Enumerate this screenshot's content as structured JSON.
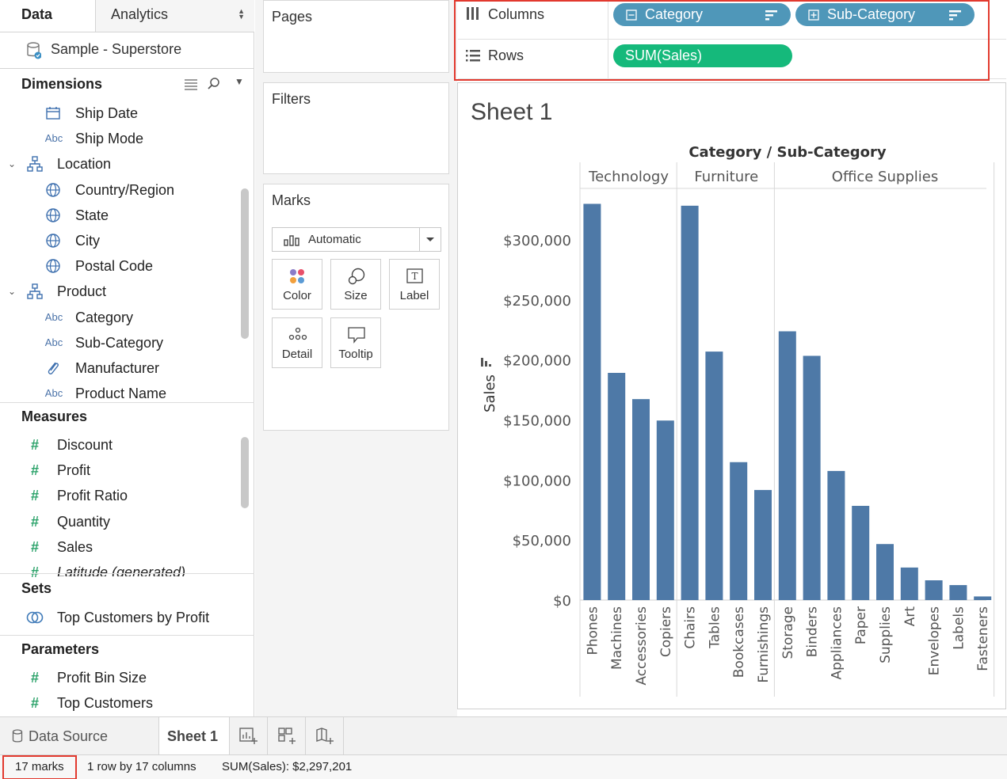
{
  "left_pane": {
    "tab_data": "Data",
    "tab_analytics": "Analytics",
    "data_source": "Sample - Superstore",
    "dimensions_title": "Dimensions",
    "dimensions": [
      {
        "label": "Ship Date",
        "icon": "calendar-icon"
      },
      {
        "label": "Ship Mode",
        "icon": "Abc"
      },
      {
        "label": "Location",
        "icon": "hierarchy-icon"
      },
      {
        "label": "Country/Region",
        "icon": "globe-icon"
      },
      {
        "label": "State",
        "icon": "globe-icon"
      },
      {
        "label": "City",
        "icon": "globe-icon"
      },
      {
        "label": "Postal Code",
        "icon": "globe-icon"
      },
      {
        "label": "Product",
        "icon": "hierarchy-icon"
      },
      {
        "label": "Category",
        "icon": "Abc"
      },
      {
        "label": "Sub-Category",
        "icon": "Abc"
      },
      {
        "label": "Manufacturer",
        "icon": "paperclip-icon"
      },
      {
        "label": "Product Name",
        "icon": "Abc"
      }
    ],
    "measures_title": "Measures",
    "measures": [
      {
        "label": "Discount"
      },
      {
        "label": "Profit"
      },
      {
        "label": "Profit Ratio"
      },
      {
        "label": "Quantity"
      },
      {
        "label": "Sales"
      },
      {
        "label": "Latitude (generated)"
      }
    ],
    "sets_title": "Sets",
    "sets": [
      {
        "label": "Top Customers by Profit"
      }
    ],
    "parameters_title": "Parameters",
    "parameters": [
      {
        "label": "Profit Bin Size"
      },
      {
        "label": "Top Customers"
      }
    ]
  },
  "cards": {
    "pages": "Pages",
    "filters": "Filters",
    "marks": "Marks",
    "mark_type": "Automatic",
    "buttons": {
      "color": "Color",
      "size": "Size",
      "label": "Label",
      "detail": "Detail",
      "tooltip": "Tooltip"
    }
  },
  "shelves": {
    "columns_label": "Columns",
    "rows_label": "Rows",
    "column_pills": [
      "Category",
      "Sub-Category"
    ],
    "row_pills": [
      "SUM(Sales)"
    ]
  },
  "sheet": {
    "title": "Sheet 1"
  },
  "chart_data": {
    "type": "bar",
    "title": "Category / Sub-Category",
    "ylabel": "Sales",
    "ylim": [
      0,
      340000
    ],
    "yticks": [
      0,
      50000,
      100000,
      150000,
      200000,
      250000,
      300000
    ],
    "ytick_labels": [
      "$0",
      "$50,000",
      "$100,000",
      "$150,000",
      "$200,000",
      "$250,000",
      "$300,000"
    ],
    "color": "#4e79a7",
    "groups": [
      {
        "name": "Technology",
        "categories": [
          "Phones",
          "Machines",
          "Accessories",
          "Copiers"
        ],
        "values": [
          330007,
          189239,
          167380,
          149528
        ]
      },
      {
        "name": "Furniture",
        "categories": [
          "Chairs",
          "Tables",
          "Bookcases",
          "Furnishings"
        ],
        "values": [
          328449,
          206966,
          114880,
          91705
        ]
      },
      {
        "name": "Office Supplies",
        "categories": [
          "Storage",
          "Binders",
          "Appliances",
          "Paper",
          "Supplies",
          "Art",
          "Envelopes",
          "Labels",
          "Fasteners"
        ],
        "values": [
          223844,
          203413,
          107532,
          78479,
          46674,
          27119,
          16476,
          12486,
          3024
        ]
      }
    ]
  },
  "bottom_tabs": {
    "data_source": "Data Source",
    "sheet": "Sheet 1"
  },
  "status": {
    "marks": "17 marks",
    "dims": "1 row by 17 columns",
    "sum": "SUM(Sales): $2,297,201"
  }
}
